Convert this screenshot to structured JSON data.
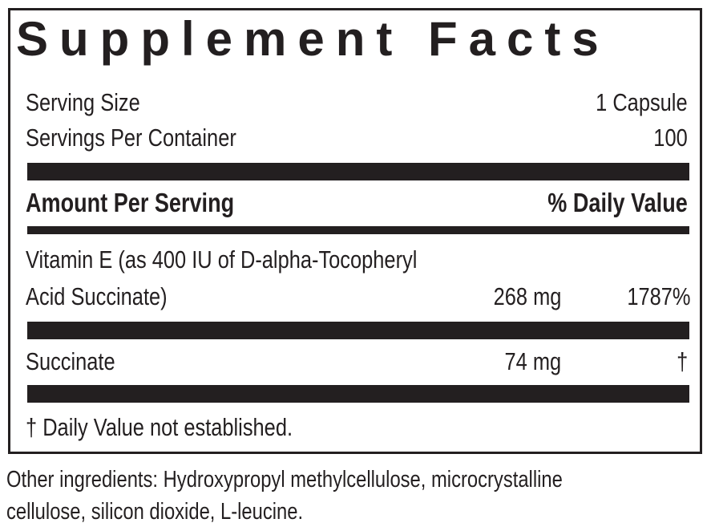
{
  "title": "Supplement Facts",
  "serving_size_label": "Serving Size",
  "serving_size_value": "1 Capsule",
  "servings_label": "Servings Per Container",
  "servings_value": "100",
  "amount_header": "Amount Per Serving",
  "dv_header": "% Daily Value",
  "rows": [
    {
      "name_line1": "Vitamin E (as 400 IU of D-alpha-Tocopheryl",
      "name_line2": "Acid Succinate)",
      "amount": "268 mg",
      "dv": "1787%"
    },
    {
      "name_line1": "Succinate",
      "amount": "74 mg",
      "dv": "†"
    }
  ],
  "footnote": "† Daily Value not established.",
  "other_line1": "Other ingredients: Hydroxypropyl methylcellulose, microcrystalline",
  "other_line2": "cellulose, silicon dioxide, L-leucine."
}
